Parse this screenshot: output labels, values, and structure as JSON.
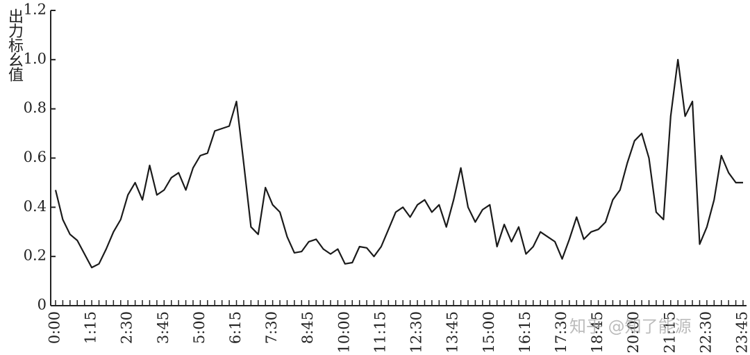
{
  "chart_data": {
    "type": "line",
    "y_label": "出力标幺值",
    "watermark": "知乎 @知了能源",
    "categories": [
      "0:00",
      null,
      null,
      null,
      null,
      "1:15",
      null,
      null,
      null,
      null,
      "2:30",
      null,
      null,
      null,
      null,
      "3:45",
      null,
      null,
      null,
      null,
      "5:00",
      null,
      null,
      null,
      null,
      "6:15",
      null,
      null,
      null,
      null,
      "7:30",
      null,
      null,
      null,
      null,
      "8:45",
      null,
      null,
      null,
      null,
      "10:00",
      null,
      null,
      null,
      null,
      "11:15",
      null,
      null,
      null,
      null,
      "12:30",
      null,
      null,
      null,
      null,
      "13:45",
      null,
      null,
      null,
      null,
      "15:00",
      null,
      null,
      null,
      null,
      "16:15",
      null,
      null,
      null,
      null,
      "17:30",
      null,
      null,
      null,
      null,
      "18:45",
      null,
      null,
      null,
      null,
      "20:00",
      null,
      null,
      null,
      null,
      "21:15",
      null,
      null,
      null,
      null,
      "22:30",
      null,
      null,
      null,
      null,
      "23:45"
    ],
    "values": [
      0.47,
      0.35,
      0.29,
      0.265,
      0.21,
      0.155,
      0.17,
      0.23,
      0.3,
      0.35,
      0.45,
      0.5,
      0.43,
      0.57,
      0.45,
      0.47,
      0.52,
      0.54,
      0.47,
      0.56,
      0.61,
      0.62,
      0.71,
      0.72,
      0.73,
      0.83,
      0.58,
      0.32,
      0.29,
      0.48,
      0.41,
      0.38,
      0.28,
      0.215,
      0.22,
      0.26,
      0.27,
      0.23,
      0.21,
      0.23,
      0.17,
      0.175,
      0.24,
      0.235,
      0.2,
      0.24,
      0.31,
      0.38,
      0.4,
      0.36,
      0.41,
      0.43,
      0.38,
      0.41,
      0.32,
      0.43,
      0.56,
      0.4,
      0.34,
      0.39,
      0.41,
      0.24,
      0.33,
      0.26,
      0.32,
      0.21,
      0.24,
      0.3,
      0.28,
      0.26,
      0.19,
      0.27,
      0.36,
      0.27,
      0.3,
      0.31,
      0.34,
      0.43,
      0.47,
      0.58,
      0.67,
      0.7,
      0.6,
      0.38,
      0.35,
      0.77,
      1.0,
      0.77,
      0.83,
      0.25,
      0.32,
      0.43,
      0.61,
      0.54,
      0.5,
      0.5
    ],
    "color": "#1a1a1a",
    "ylim": [
      0,
      1.2
    ],
    "yticks": [
      0,
      0.2,
      0.4,
      0.6,
      0.8,
      {
        "value": 1,
        "label": "1.0"
      },
      1.2
    ],
    "grid": false
  }
}
